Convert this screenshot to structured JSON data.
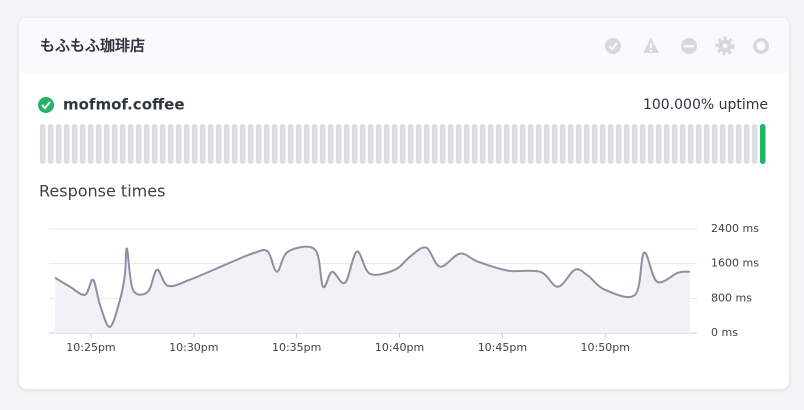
{
  "header": {
    "title": "もふもふ珈琲店"
  },
  "monitor": {
    "name": "mofmof.coffee",
    "uptime": "100.000% uptime"
  },
  "chart_data": {
    "type": "line",
    "title": "Response times",
    "x": [
      23.25,
      23.98,
      24.71,
      25.1,
      25.44,
      25.92,
      26.41,
      26.65,
      26.75,
      27.04,
      27.77,
      28.21,
      28.74,
      29.81,
      31.76,
      32.97,
      33.6,
      34.04,
      34.58,
      35.89,
      36.28,
      36.72,
      37.35,
      37.93,
      38.56,
      39.78,
      40.51,
      41.29,
      41.97,
      42.94,
      43.81,
      45.27,
      46.83,
      47.7,
      48.53,
      49.16,
      49.99,
      51.45,
      51.89,
      52.52,
      53.54,
      54.12
    ],
    "series": [
      {
        "name": "Response time",
        "color": "#8e8fa0",
        "values": [
          1275,
          1067,
          881,
          1229,
          649,
          139,
          765,
          1345,
          1948,
          997,
          951,
          1461,
          1090,
          1229,
          1623,
          1855,
          1878,
          1414,
          1878,
          1925,
          1067,
          1414,
          1159,
          1878,
          1368,
          1461,
          1762,
          1971,
          1530,
          1832,
          1646,
          1438,
          1414,
          1067,
          1461,
          1322,
          997,
          881,
          1855,
          1183,
          1391,
          1414
        ]
      }
    ],
    "xlim": [
      22.96,
      54.46
    ],
    "xticks": [
      {
        "value": 25,
        "label": "10:25pm"
      },
      {
        "value": 30,
        "label": "10:30pm"
      },
      {
        "value": 35,
        "label": "10:35pm"
      },
      {
        "value": 40,
        "label": "10:40pm"
      },
      {
        "value": 45,
        "label": "10:45pm"
      },
      {
        "value": 50,
        "label": "10:50pm"
      }
    ],
    "ylim": [
      0,
      2400
    ],
    "yticks": [
      {
        "value": 0,
        "label": "0 ms"
      },
      {
        "value": 800,
        "label": "800 ms"
      },
      {
        "value": 1600,
        "label": "1600 ms"
      },
      {
        "value": 2400,
        "label": "2400 ms"
      }
    ],
    "grid": true
  }
}
